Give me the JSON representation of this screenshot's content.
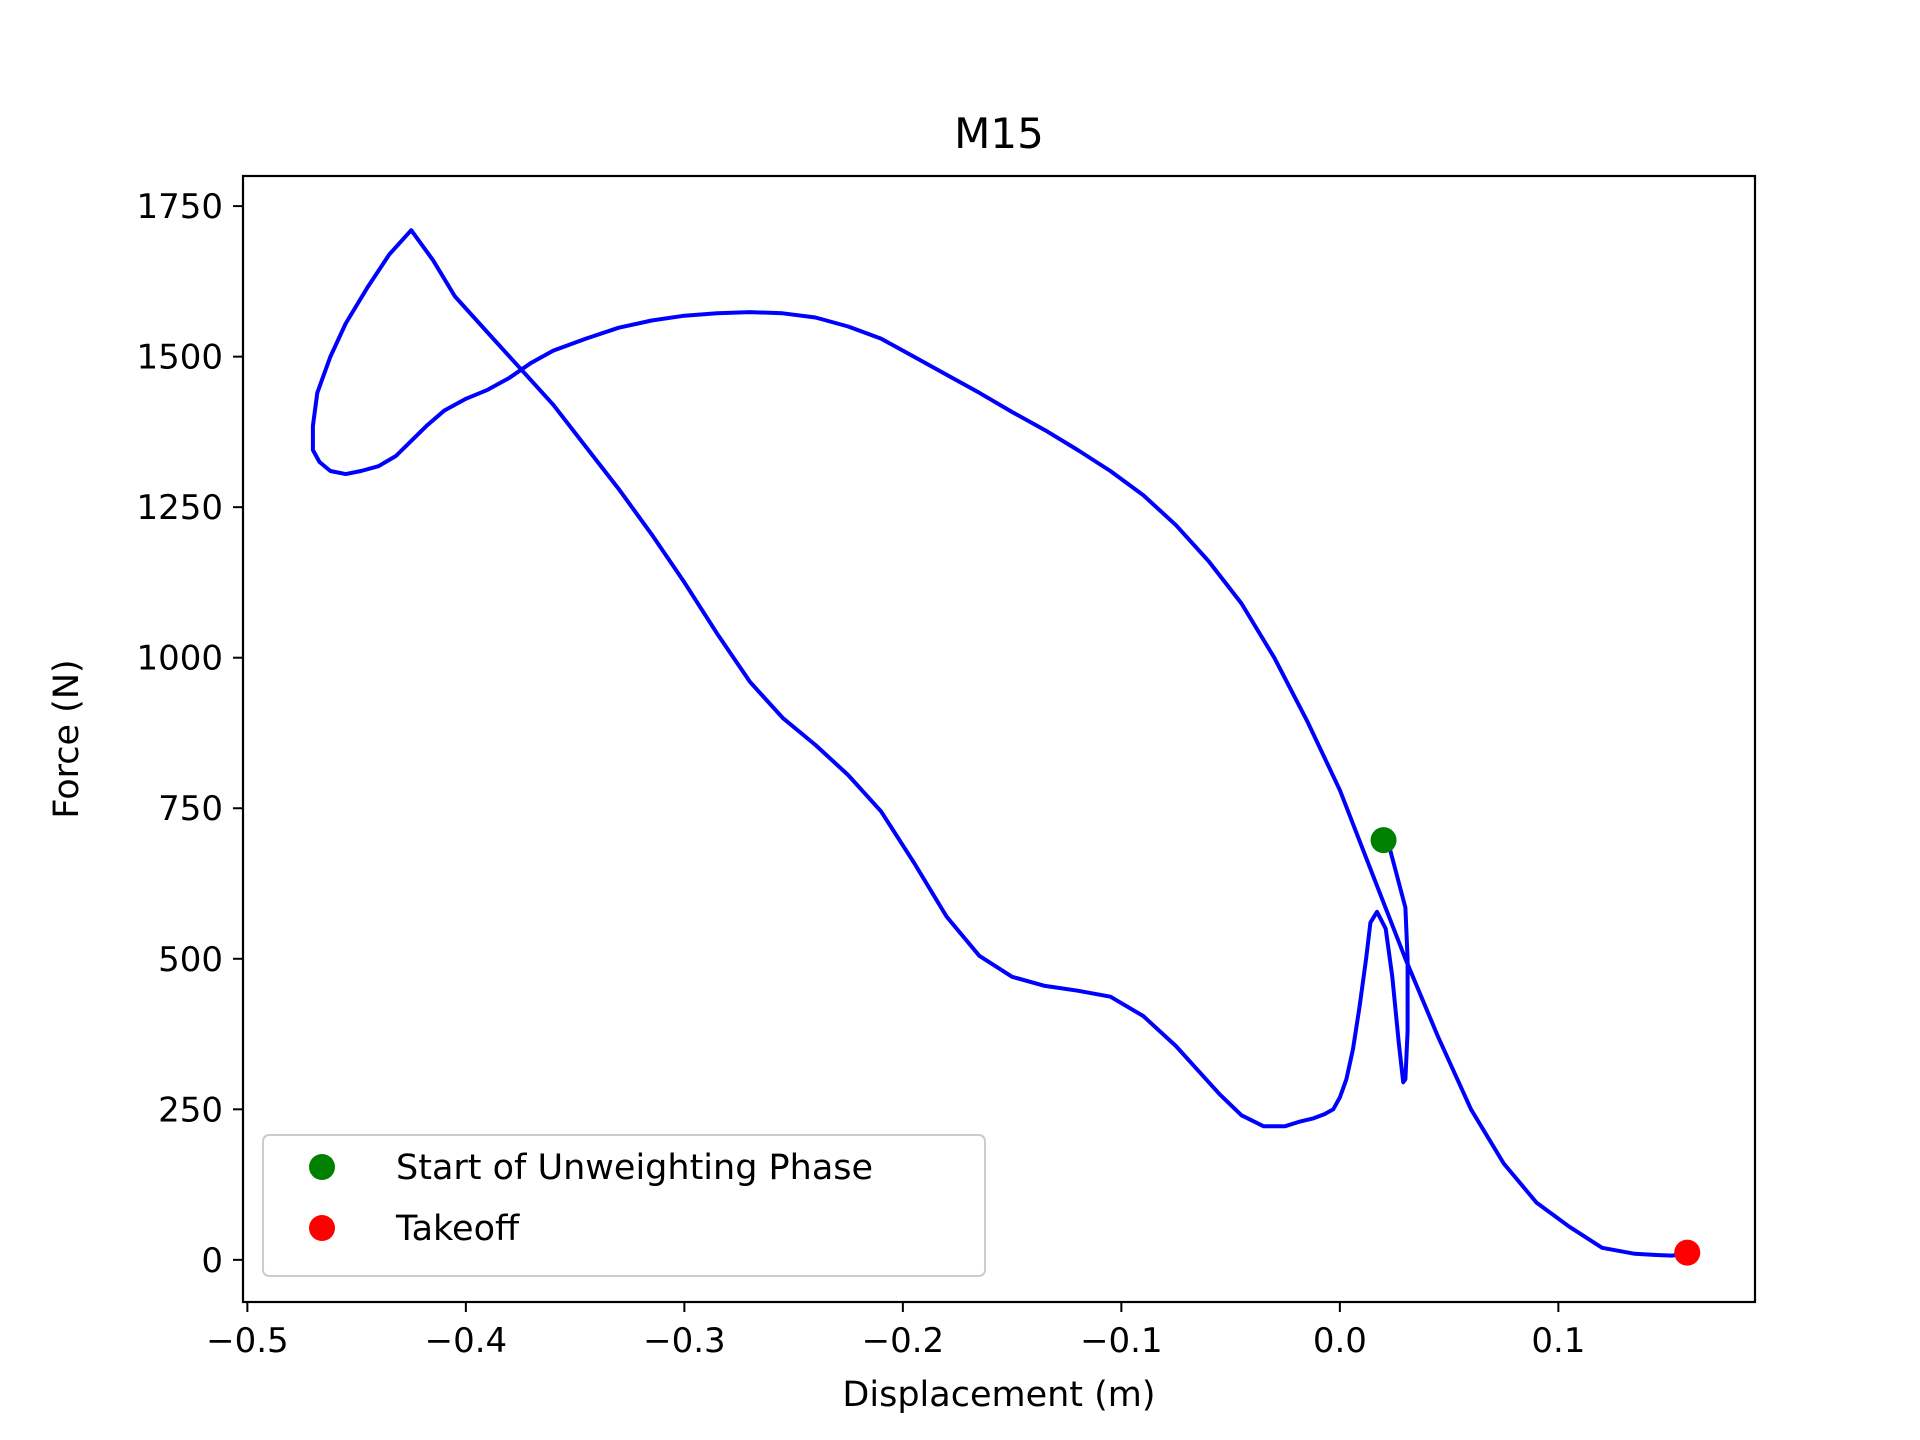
{
  "chart_data": {
    "type": "line",
    "title": "M15",
    "xlabel": "Displacement (m)",
    "ylabel": "Force (N)",
    "xlim": [
      -0.502,
      0.19
    ],
    "ylim": [
      -70,
      1800
    ],
    "xticks": [
      -0.5,
      -0.4,
      -0.3,
      -0.2,
      -0.1,
      0.0,
      0.1
    ],
    "xtick_labels": [
      "−0.5",
      "−0.4",
      "−0.3",
      "−0.2",
      "−0.1",
      "0.0",
      "0.1"
    ],
    "yticks": [
      0,
      250,
      500,
      750,
      1000,
      1250,
      1500,
      1750
    ],
    "ytick_labels": [
      "0",
      "250",
      "500",
      "750",
      "1000",
      "1250",
      "1500",
      "1750"
    ],
    "grid": false,
    "legend_position": "lower-left",
    "series": [
      {
        "color": "#0000ff",
        "x": [
          0.022,
          0.03,
          0.031,
          0.031,
          0.03,
          0.029,
          0.027,
          0.024,
          0.021,
          0.017,
          0.014,
          0.012,
          0.009,
          0.006,
          0.003,
          0.0,
          -0.003,
          -0.007,
          -0.012,
          -0.018,
          -0.025,
          -0.035,
          -0.045,
          -0.055,
          -0.065,
          -0.075,
          -0.09,
          -0.105,
          -0.12,
          -0.135,
          -0.15,
          -0.165,
          -0.18,
          -0.195,
          -0.21,
          -0.225,
          -0.24,
          -0.255,
          -0.27,
          -0.285,
          -0.3,
          -0.315,
          -0.33,
          -0.345,
          -0.36,
          -0.375,
          -0.39,
          -0.405,
          -0.415,
          -0.425,
          -0.435,
          -0.445,
          -0.455,
          -0.462,
          -0.468,
          -0.47,
          -0.47,
          -0.467,
          -0.462,
          -0.455,
          -0.448,
          -0.44,
          -0.432,
          -0.425,
          -0.418,
          -0.41,
          -0.4,
          -0.39,
          -0.38,
          -0.37,
          -0.36,
          -0.345,
          -0.33,
          -0.315,
          -0.3,
          -0.285,
          -0.27,
          -0.255,
          -0.24,
          -0.225,
          -0.21,
          -0.195,
          -0.18,
          -0.165,
          -0.15,
          -0.135,
          -0.12,
          -0.105,
          -0.09,
          -0.075,
          -0.06,
          -0.045,
          -0.03,
          -0.015,
          0.0,
          0.015,
          0.03,
          0.045,
          0.06,
          0.075,
          0.09,
          0.105,
          0.12,
          0.135,
          0.145,
          0.152,
          0.158
        ],
        "y": [
          695,
          585,
          500,
          380,
          300,
          295,
          360,
          470,
          550,
          578,
          560,
          500,
          420,
          350,
          300,
          270,
          250,
          242,
          235,
          230,
          222,
          222,
          240,
          275,
          315,
          355,
          405,
          437,
          447,
          455,
          470,
          505,
          570,
          660,
          745,
          805,
          855,
          900,
          960,
          1040,
          1125,
          1205,
          1280,
          1350,
          1420,
          1480,
          1540,
          1600,
          1660,
          1710,
          1670,
          1615,
          1555,
          1500,
          1440,
          1385,
          1345,
          1325,
          1310,
          1305,
          1310,
          1318,
          1335,
          1360,
          1385,
          1410,
          1430,
          1445,
          1465,
          1490,
          1510,
          1530,
          1548,
          1560,
          1568,
          1572,
          1574,
          1572,
          1565,
          1550,
          1530,
          1500,
          1470,
          1440,
          1408,
          1378,
          1345,
          1310,
          1270,
          1220,
          1160,
          1090,
          1000,
          895,
          780,
          640,
          500,
          370,
          250,
          160,
          95,
          55,
          20,
          10,
          8,
          7,
          10
        ]
      }
    ],
    "markers": [
      {
        "name": "Start of Unweighting Phase",
        "x": 0.02,
        "y": 697,
        "color": "#008000"
      },
      {
        "name": "Takeoff",
        "x": 0.159,
        "y": 12,
        "color": "#ff0000"
      }
    ]
  }
}
